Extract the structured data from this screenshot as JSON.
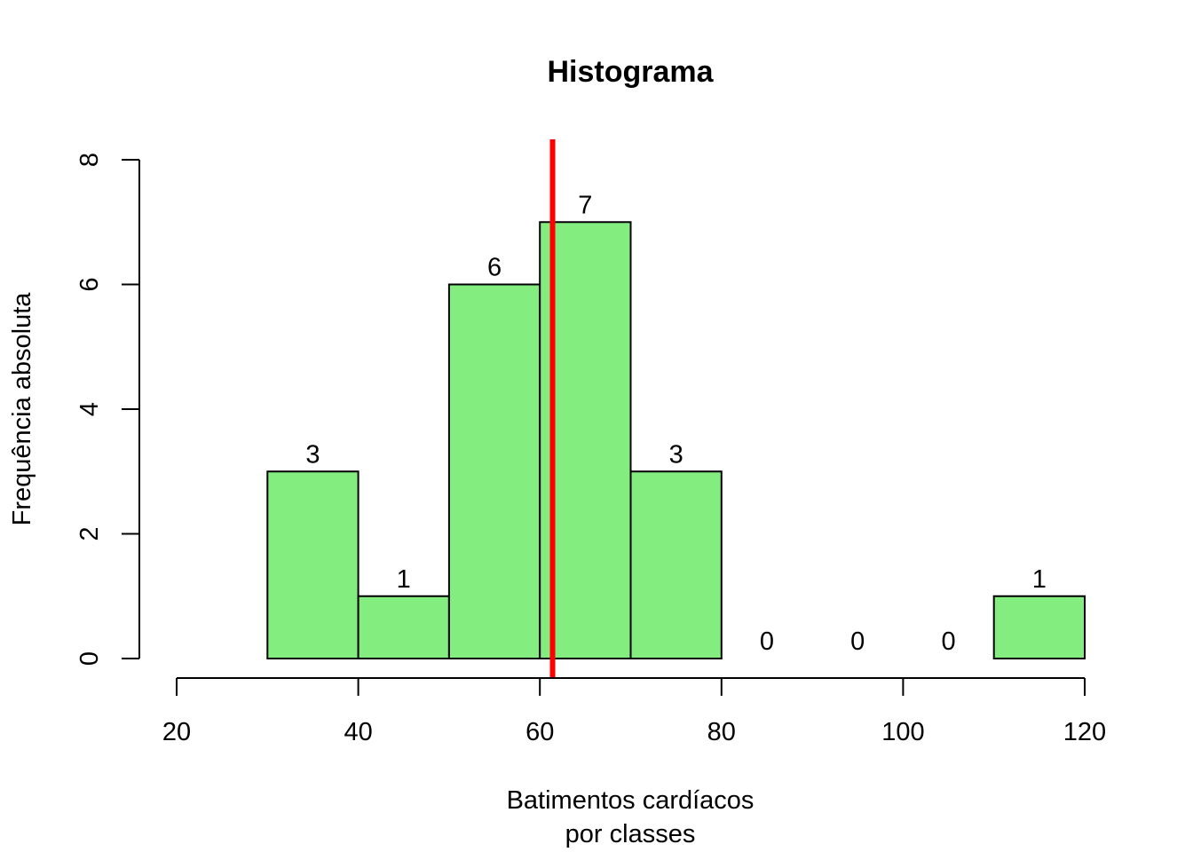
{
  "chart_data": {
    "type": "bar",
    "title": "Histograma",
    "xlabel_lines": [
      "Batimentos cardíacos",
      "por classes"
    ],
    "ylabel": "Frequência absoluta",
    "bins": [
      {
        "from": 30,
        "to": 40,
        "count": 3
      },
      {
        "from": 40,
        "to": 50,
        "count": 1
      },
      {
        "from": 50,
        "to": 60,
        "count": 6
      },
      {
        "from": 60,
        "to": 70,
        "count": 7
      },
      {
        "from": 70,
        "to": 80,
        "count": 3
      },
      {
        "from": 80,
        "to": 90,
        "count": 0
      },
      {
        "from": 90,
        "to": 100,
        "count": 0
      },
      {
        "from": 100,
        "to": 110,
        "count": 0
      },
      {
        "from": 110,
        "to": 120,
        "count": 1
      }
    ],
    "xlim": [
      20,
      120
    ],
    "ylim": [
      0,
      8
    ],
    "x_ticks": [
      20,
      40,
      60,
      80,
      100,
      120
    ],
    "y_ticks": [
      0,
      2,
      4,
      6,
      8
    ],
    "vertical_line_x": 61.4,
    "grid": false,
    "colors": {
      "bar_fill": "#83ED7F",
      "bar_edge": "#000000",
      "reference_line": "#FF0000"
    }
  }
}
